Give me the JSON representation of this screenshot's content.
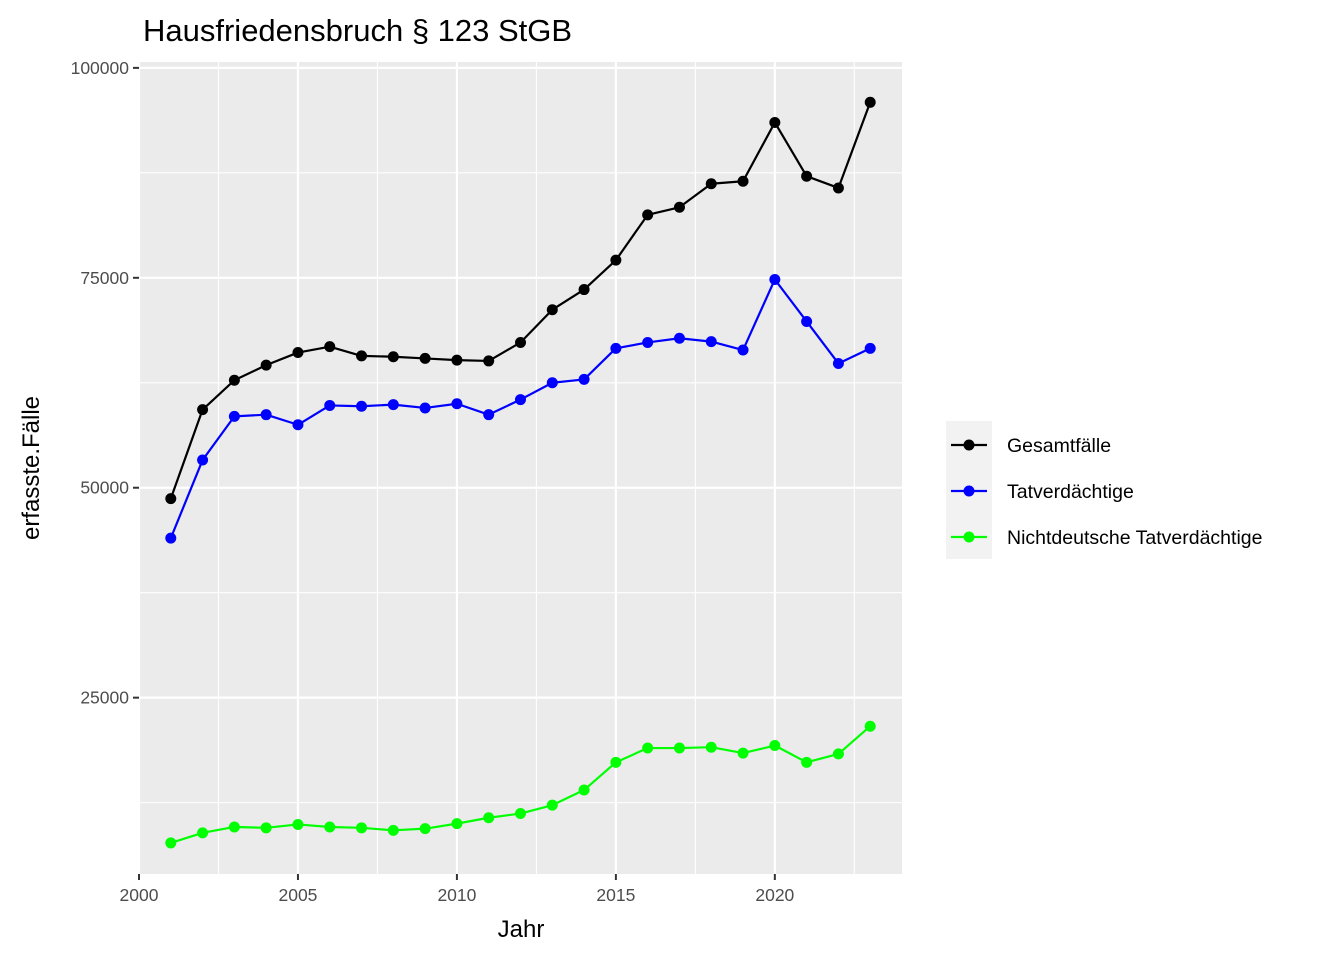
{
  "chart_data": {
    "type": "line",
    "title": "Hausfriedensbruch § 123 StGB",
    "xlabel": "Jahr",
    "ylabel": "erfasste.Fälle",
    "x": [
      2001,
      2002,
      2003,
      2004,
      2005,
      2006,
      2007,
      2008,
      2009,
      2010,
      2011,
      2012,
      2013,
      2014,
      2015,
      2016,
      2017,
      2018,
      2019,
      2020,
      2021,
      2022,
      2023
    ],
    "xlim": [
      2000,
      2024
    ],
    "ylim": [
      4000,
      100700
    ],
    "xticks": [
      2000,
      2005,
      2010,
      2015,
      2020
    ],
    "yticks": [
      25000,
      50000,
      75000,
      100000
    ],
    "grid": true,
    "legend_position": "right",
    "series": [
      {
        "name": "Gesamtfälle",
        "color": "#000000",
        "values": [
          48700,
          59300,
          62800,
          64600,
          66100,
          66800,
          65700,
          65600,
          65400,
          65200,
          65100,
          67300,
          71200,
          73600,
          77100,
          82500,
          83400,
          86200,
          86500,
          93500,
          87100,
          85700,
          95900
        ]
      },
      {
        "name": "Tatverdächtige",
        "color": "#0000ff",
        "values": [
          44000,
          53300,
          58500,
          58700,
          57500,
          59800,
          59700,
          59900,
          59500,
          60000,
          58700,
          60500,
          62500,
          62900,
          66600,
          67300,
          67800,
          67400,
          66400,
          74800,
          69800,
          64800,
          66600
        ]
      },
      {
        "name": "Nichtdeutsche Tatverdächtige",
        "color": "#00ff00",
        "values": [
          7700,
          8900,
          9600,
          9500,
          9900,
          9600,
          9500,
          9200,
          9400,
          10000,
          10700,
          11200,
          12200,
          14000,
          17300,
          19000,
          19000,
          19100,
          18400,
          19300,
          17300,
          18300,
          21600
        ]
      }
    ]
  }
}
